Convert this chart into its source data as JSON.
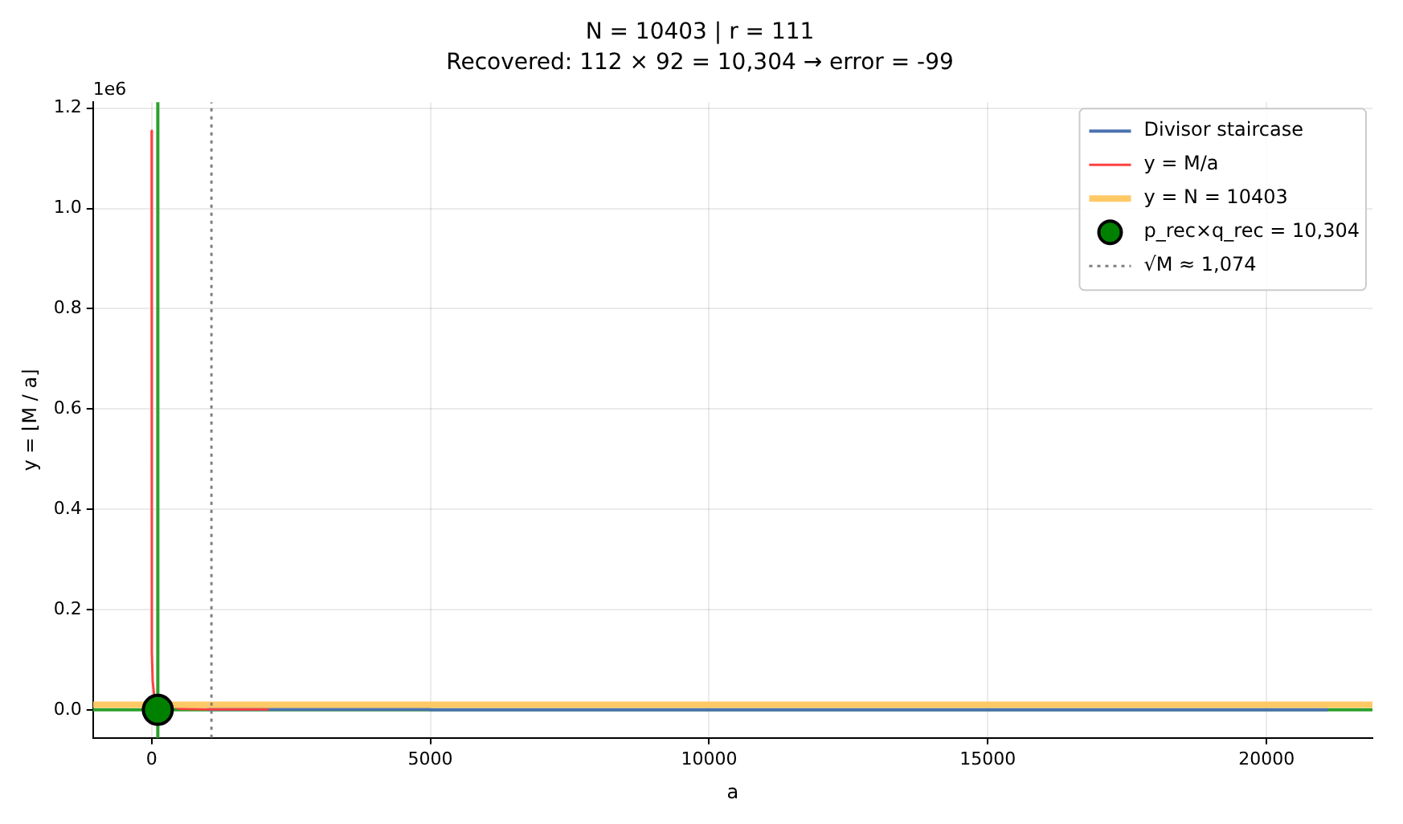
{
  "chart_data": {
    "type": "line",
    "title": "N = 10403 | r = 111",
    "subtitle": "Recovered: 112 × 92 = 10,304 → error = -99",
    "xlabel": "a",
    "ylabel": "y = ⌊M / a⌋",
    "xlim": [
      -1050,
      21900
    ],
    "ylim": [
      -0.056,
      1.212
    ],
    "xticks": [
      0,
      5000,
      10000,
      15000,
      20000
    ],
    "yticks": [
      {
        "value": 0,
        "label": "0.0"
      },
      0.2,
      0.4,
      0.6,
      0.8,
      {
        "value": 1,
        "label": "1.0"
      },
      1.2
    ],
    "annotations": [
      "1e6"
    ],
    "grid": true,
    "legend": "top right",
    "series": [
      {
        "name": "Divisor staircase",
        "type": "step",
        "color": "#4c72b0",
        "x": [
          1000,
          2000,
          5000,
          10000,
          21100
        ],
        "values": [
          0.001,
          0.001,
          0,
          0,
          0
        ]
      },
      {
        "name": "y = M/a",
        "color": "#ff4040",
        "x": [
          1,
          2,
          3,
          5,
          10,
          20,
          50,
          500,
          1000,
          2100
        ],
        "values": [
          1.155,
          0.58,
          0.385,
          0.23,
          0.115,
          0.058,
          0.023,
          0.002,
          0.001,
          0.001
        ]
      },
      {
        "name": "y = N = 10403",
        "color": "#ffc966",
        "x": [
          -1050,
          21900
        ],
        "values": [
          0.01,
          0.01
        ]
      },
      {
        "name": "p_rec×q_rec = 10,304",
        "type": "scatter",
        "color": "#008000",
        "marker": "circle",
        "x": [
          112
        ],
        "values": [
          0
        ]
      },
      {
        "name": "√M ≈ 1,074",
        "color": "#808080",
        "line_style": "dotted",
        "x": [
          1074,
          1074
        ],
        "values": [
          -0.056,
          1.212
        ]
      }
    ],
    "ref_lines": [
      {
        "axis": "x",
        "value": 112,
        "color": "#2ca02c"
      },
      {
        "axis": "y",
        "value": 0,
        "color": "#2ca02c"
      }
    ]
  }
}
